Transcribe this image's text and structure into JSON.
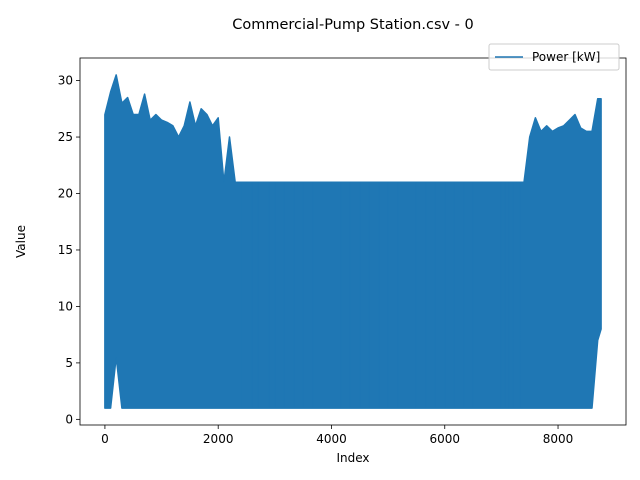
{
  "chart_data": {
    "type": "line",
    "title": "Commercial-Pump Station.csv - 0",
    "xlabel": "Index",
    "ylabel": "Value",
    "xlim": [
      -440,
      9200
    ],
    "ylim": [
      -0.5,
      32
    ],
    "xticks": [
      0,
      2000,
      4000,
      6000,
      8000
    ],
    "yticks": [
      0,
      5,
      10,
      15,
      20,
      25,
      30
    ],
    "xtick_labels": [
      "0",
      "2000",
      "4000",
      "6000",
      "8000"
    ],
    "ytick_labels": [
      "0",
      "5",
      "10",
      "15",
      "20",
      "25",
      "30"
    ],
    "grid": false,
    "legend_position": "top-right",
    "series": [
      {
        "name": "Power [kW]",
        "color": "#1f77b4",
        "x": [
          0,
          100,
          200,
          300,
          400,
          500,
          600,
          700,
          800,
          900,
          1000,
          1100,
          1200,
          1300,
          1400,
          1500,
          1600,
          1700,
          1800,
          1900,
          2000,
          2100,
          2200,
          2300,
          2400,
          3000,
          4000,
          5000,
          6000,
          7000,
          7400,
          7500,
          7600,
          7700,
          7800,
          7900,
          8000,
          8100,
          8200,
          8300,
          8400,
          8500,
          8600,
          8700,
          8760
        ],
        "y_min": [
          1,
          1,
          5.5,
          1,
          1,
          1,
          1,
          1,
          1,
          1,
          1,
          1,
          1,
          1,
          1,
          1,
          1,
          1,
          1,
          1,
          1,
          1,
          1,
          1,
          1,
          1,
          1,
          1,
          1,
          1,
          1,
          1,
          1,
          1,
          1,
          1,
          1,
          1,
          1,
          1,
          1,
          1,
          1,
          7,
          8
        ],
        "y_max": [
          27,
          29,
          30.5,
          28,
          28.5,
          27,
          27,
          28.8,
          26.5,
          27,
          26.5,
          26.3,
          26,
          25,
          26,
          28.1,
          26,
          27.5,
          27,
          26,
          26.7,
          21,
          25,
          21,
          21,
          21,
          21,
          21,
          21,
          21,
          21,
          25,
          26.7,
          25.5,
          26,
          25.5,
          25.8,
          26,
          26.5,
          27,
          25.8,
          25.5,
          25.5,
          28.4,
          28.4
        ]
      }
    ]
  }
}
